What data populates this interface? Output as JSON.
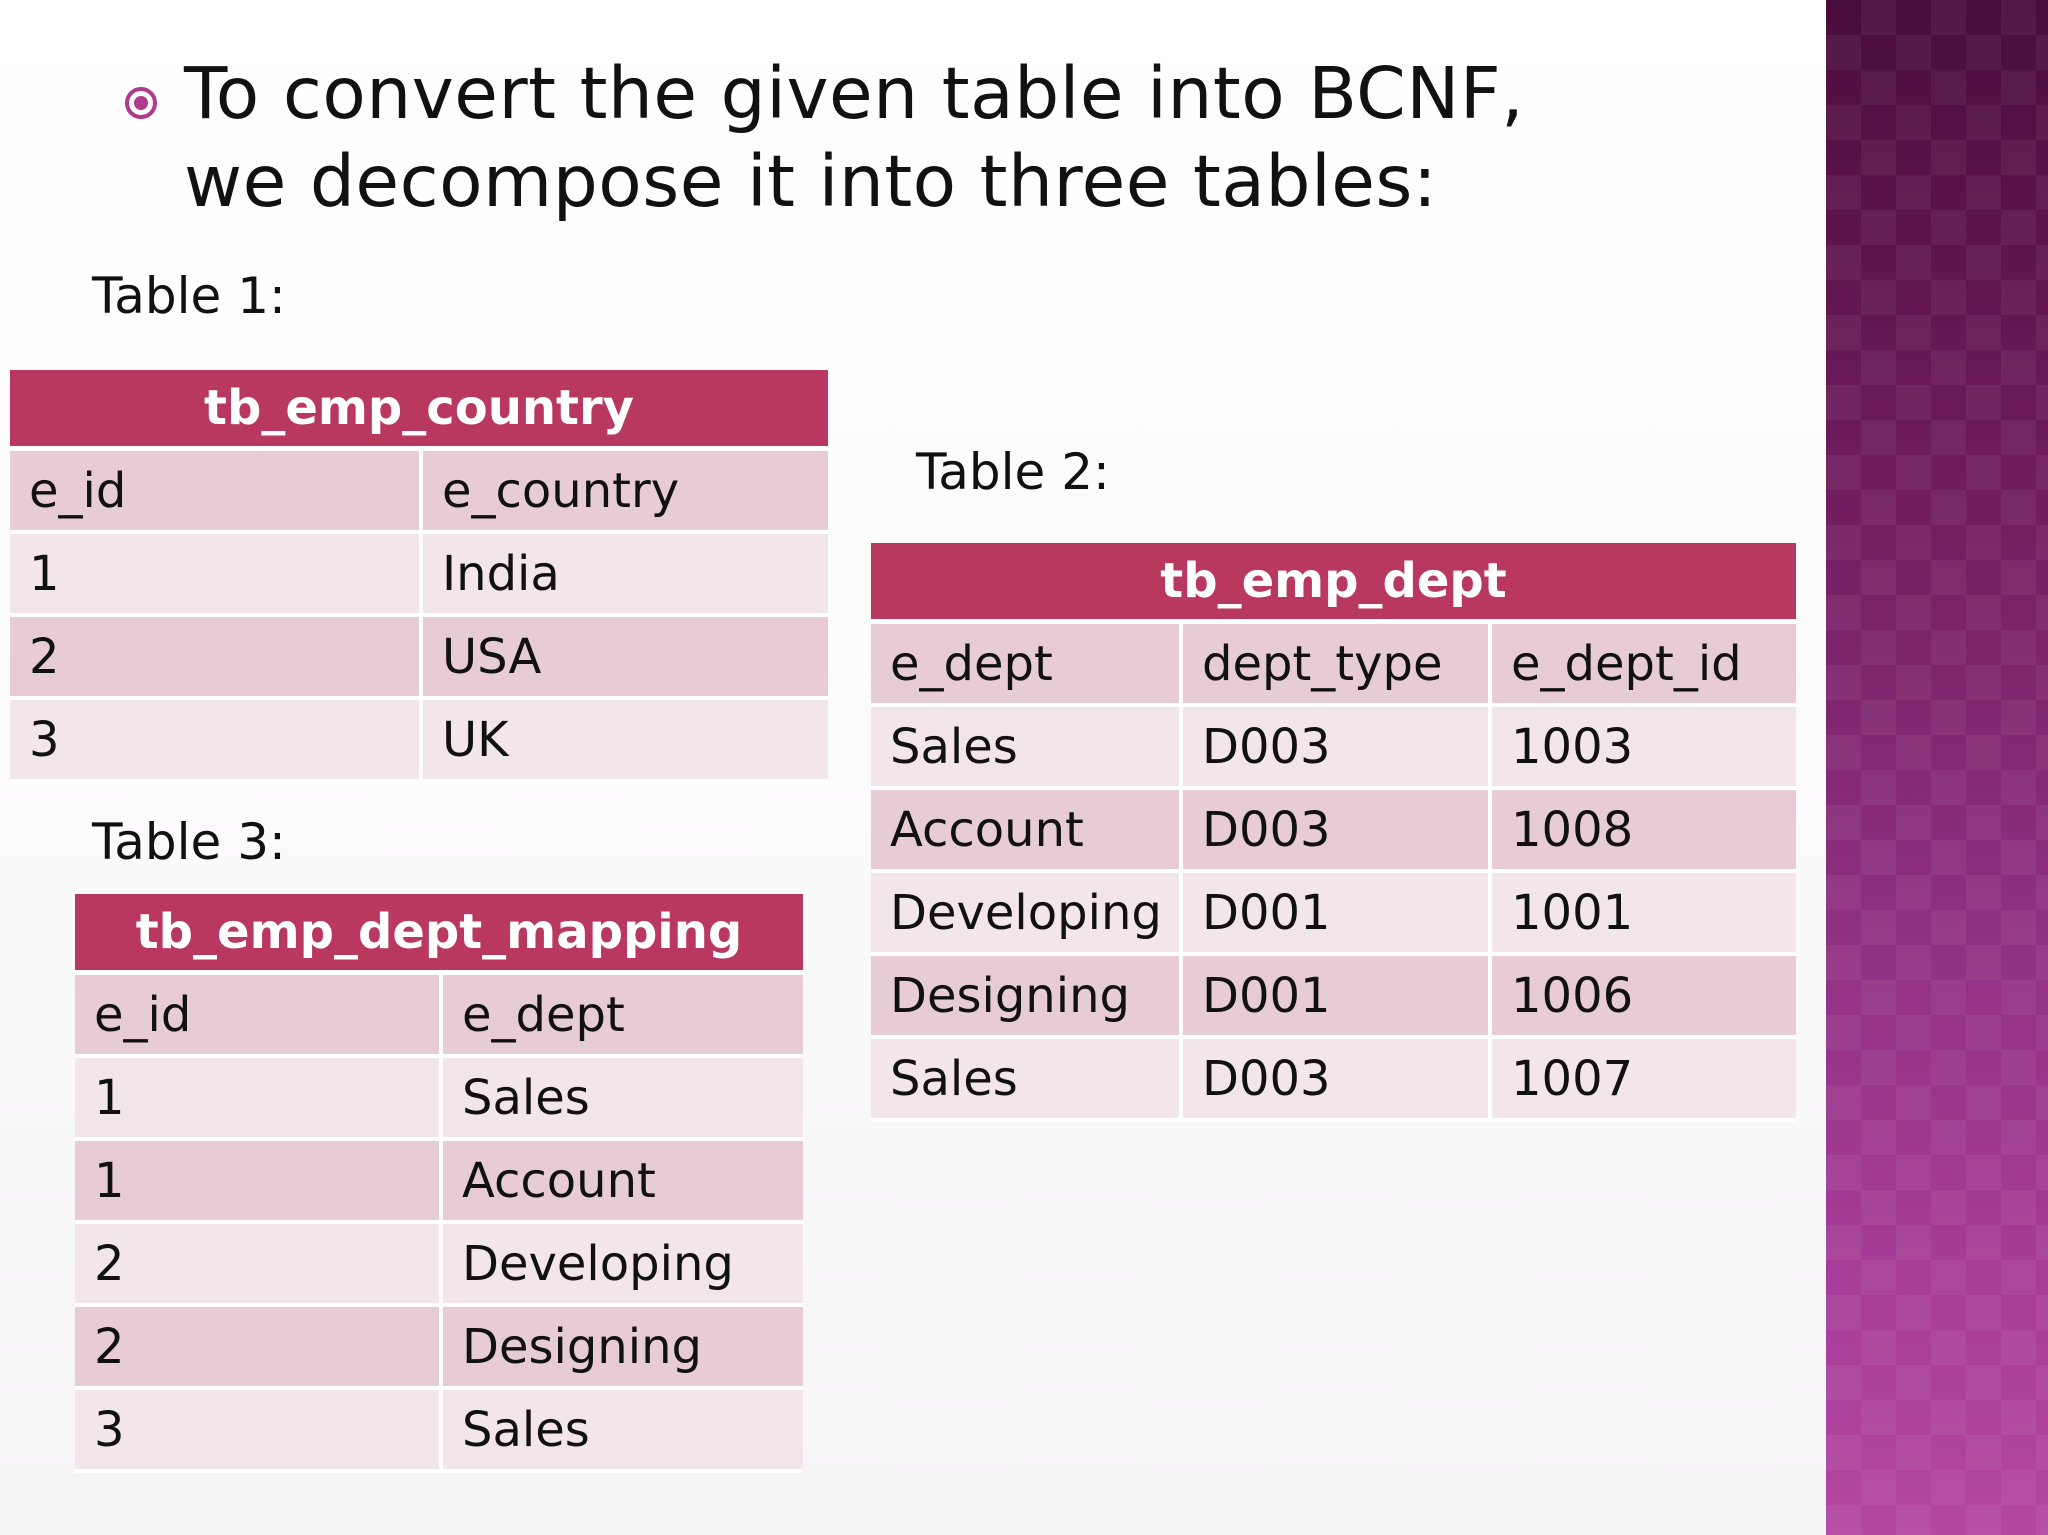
{
  "slide": {
    "bullet_text": "To convert the given table into BCNF, we decompose it into three tables:",
    "colors": {
      "accent": "#b8385f",
      "row_dark": "#e8ccd5",
      "row_light": "#f3e6eb",
      "side_panel_top": "#4a0c3c",
      "side_panel_bottom": "#b347a2"
    },
    "bullet_icon": "target-bullet-icon"
  },
  "table1": {
    "label": "Table 1:",
    "title": "tb_emp_country",
    "headers": [
      "e_id",
      "e_country"
    ],
    "rows": [
      [
        "1",
        "India"
      ],
      [
        "2",
        "USA"
      ],
      [
        "3",
        "UK"
      ]
    ]
  },
  "table2": {
    "label": "Table 2:",
    "title": "tb_emp_dept",
    "headers": [
      "e_dept",
      "dept_type",
      "e_dept_id"
    ],
    "rows": [
      [
        "Sales",
        "D003",
        "1003"
      ],
      [
        "Account",
        "D003",
        "1008"
      ],
      [
        "Developing",
        "D001",
        "1001"
      ],
      [
        "Designing",
        "D001",
        "1006"
      ],
      [
        "Sales",
        "D003",
        "1007"
      ]
    ]
  },
  "table3": {
    "label": "Table 3:",
    "title": "tb_emp_dept_mapping",
    "headers": [
      "e_id",
      "e_dept"
    ],
    "rows": [
      [
        "1",
        "Sales"
      ],
      [
        "1",
        "Account"
      ],
      [
        "2",
        "Developing"
      ],
      [
        "2",
        "Designing"
      ],
      [
        "3",
        "Sales"
      ]
    ]
  }
}
